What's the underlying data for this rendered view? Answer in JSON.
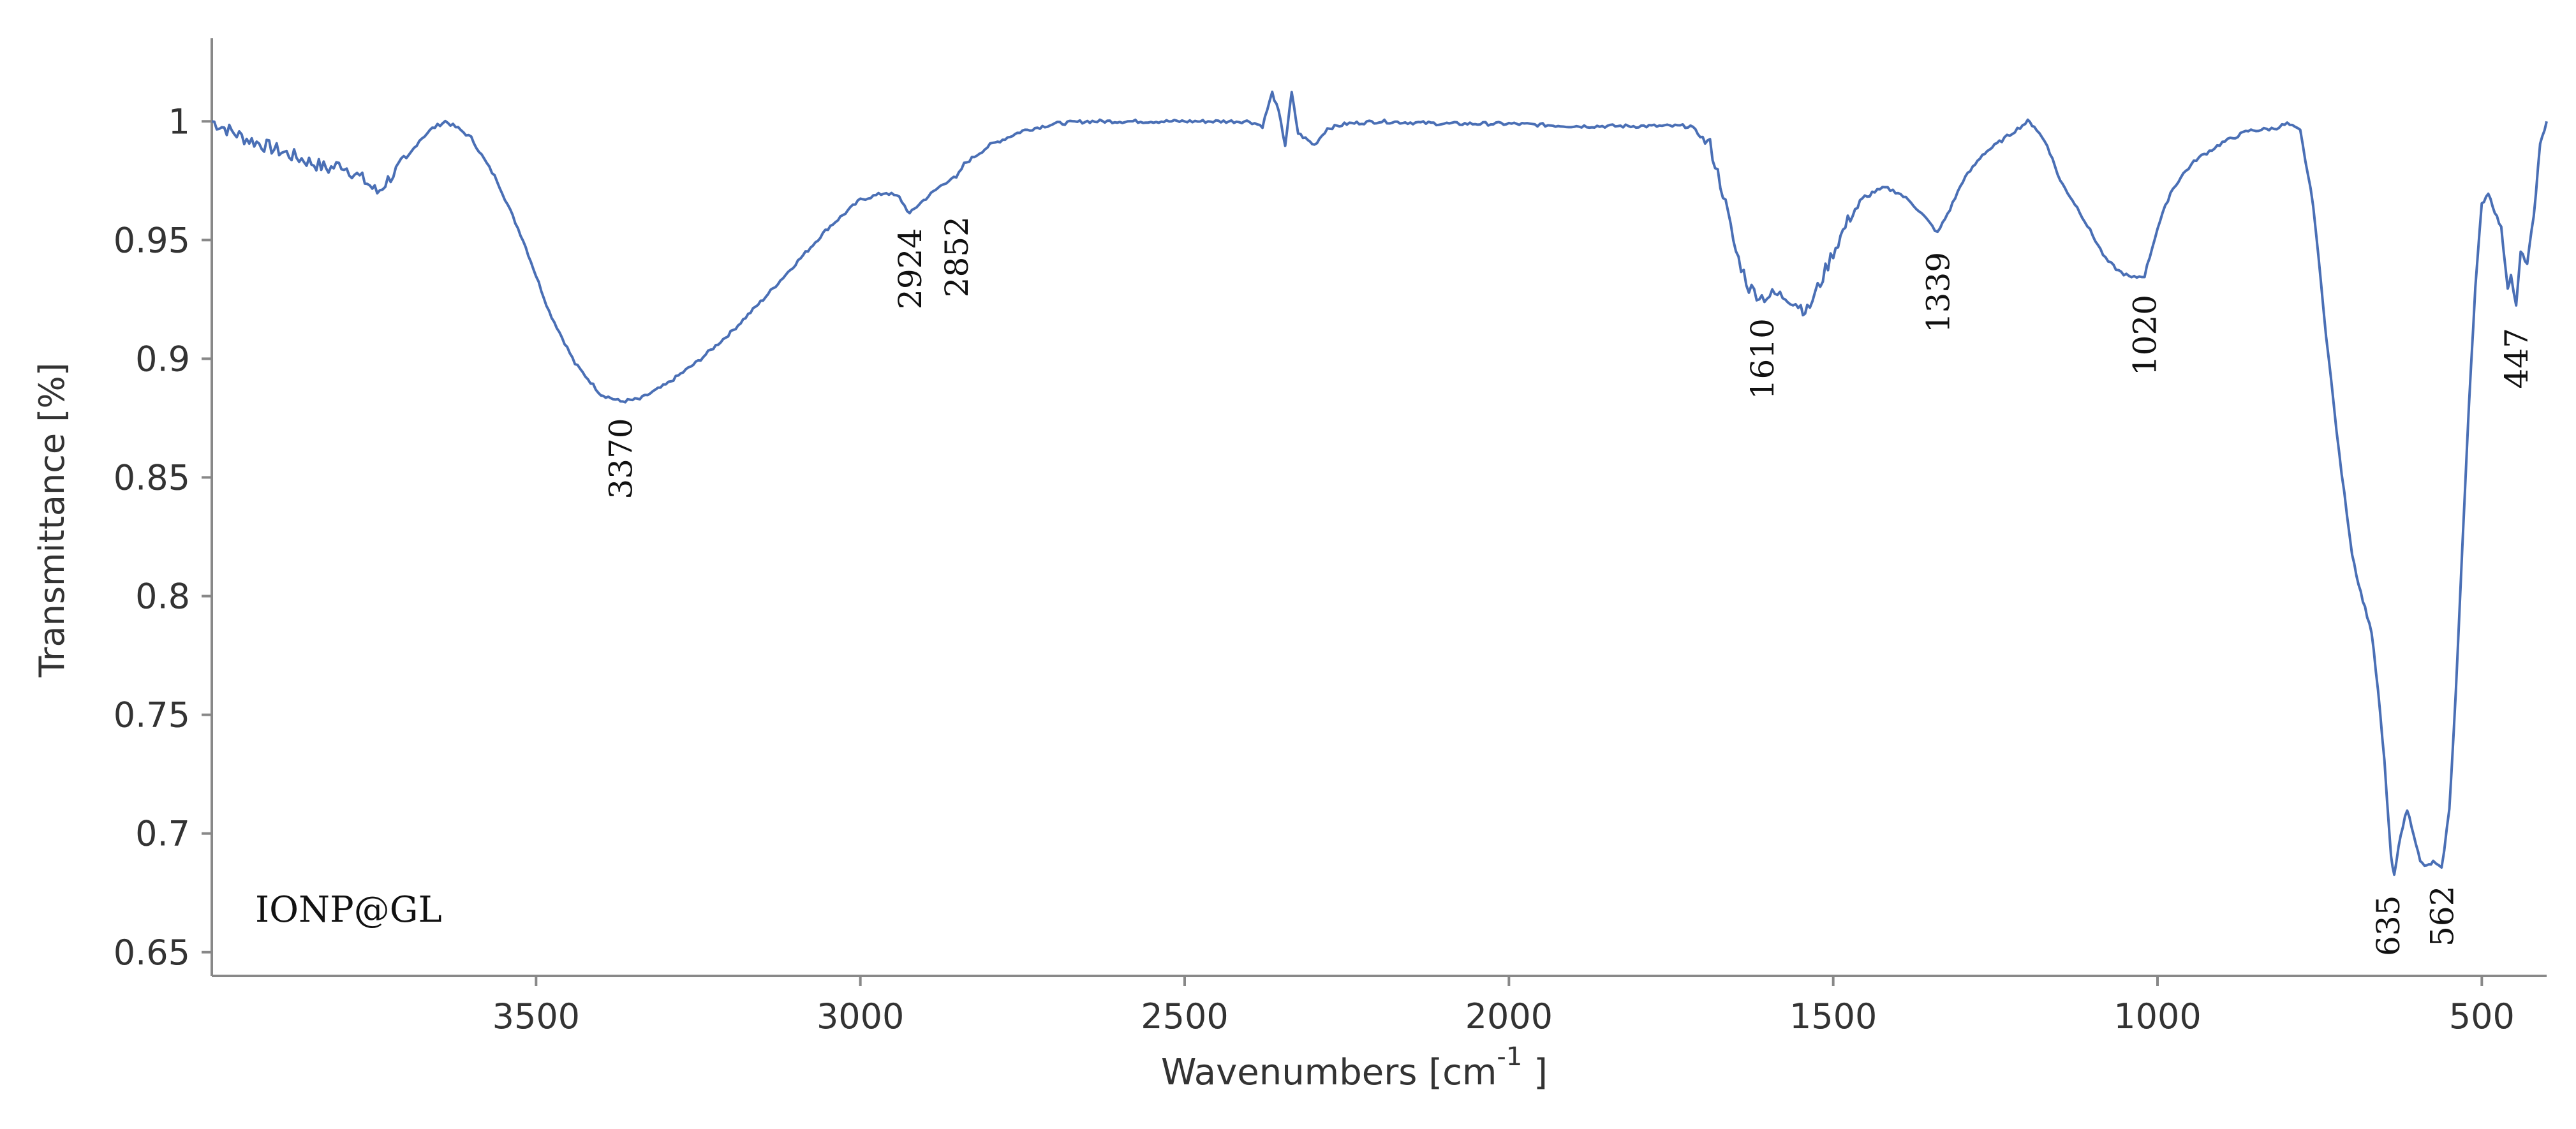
{
  "chart_data": {
    "type": "line",
    "xlabel": "Wavenumbers [cm",
    "xlabel_sup": "-1",
    "xlabel_tail": " ]",
    "ylabel": "Transmittance [%]",
    "xlim": [
      4000,
      400
    ],
    "x_reversed": true,
    "ylim": [
      0.64,
      1.035
    ],
    "x_ticks": [
      3500,
      3000,
      2500,
      2000,
      1500,
      1000,
      500
    ],
    "x_tick_labels": [
      "3500",
      "3000",
      "2500",
      "2000",
      "1500",
      "1000",
      "500"
    ],
    "y_ticks": [
      0.65,
      0.7,
      0.75,
      0.8,
      0.85,
      0.9,
      0.95,
      1
    ],
    "y_tick_labels": [
      "0.65",
      "0.7",
      "0.75",
      "0.8",
      "0.85",
      "0.9",
      "0.95",
      "1"
    ],
    "grid": false,
    "line_color": "#4a6fb5",
    "series": [
      {
        "name": "IONP@GL",
        "x": [
          4000,
          3950,
          3900,
          3850,
          3820,
          3800,
          3780,
          3760,
          3745,
          3720,
          3700,
          3680,
          3660,
          3640,
          3620,
          3600,
          3560,
          3520,
          3480,
          3440,
          3400,
          3370,
          3340,
          3300,
          3250,
          3200,
          3150,
          3100,
          3050,
          3000,
          2960,
          2940,
          2924,
          2910,
          2880,
          2860,
          2852,
          2840,
          2800,
          2750,
          2700,
          2650,
          2600,
          2500,
          2400,
          2380,
          2365,
          2355,
          2345,
          2335,
          2325,
          2310,
          2300,
          2280,
          2250,
          2200,
          2100,
          2000,
          1900,
          1800,
          1720,
          1690,
          1670,
          1650,
          1630,
          1610,
          1590,
          1570,
          1550,
          1540,
          1520,
          1500,
          1470,
          1440,
          1420,
          1400,
          1380,
          1360,
          1339,
          1320,
          1300,
          1270,
          1240,
          1220,
          1200,
          1190,
          1170,
          1150,
          1120,
          1100,
          1080,
          1060,
          1040,
          1020,
          1000,
          980,
          960,
          940,
          900,
          860,
          820,
          800,
          780,
          760,
          740,
          720,
          700,
          690,
          680,
          670,
          660,
          650,
          640,
          635,
          625,
          615,
          605,
          595,
          585,
          575,
          562,
          550,
          540,
          530,
          520,
          510,
          500,
          490,
          480,
          470,
          460,
          455,
          447,
          440,
          430,
          420,
          410,
          400
        ],
        "y": [
          1.0,
          0.993,
          0.988,
          0.983,
          0.98,
          0.982,
          0.978,
          0.974,
          0.97,
          0.978,
          0.984,
          0.992,
          0.997,
          1.0,
          0.997,
          0.993,
          0.975,
          0.95,
          0.92,
          0.898,
          0.885,
          0.882,
          0.883,
          0.889,
          0.899,
          0.911,
          0.925,
          0.94,
          0.955,
          0.967,
          0.97,
          0.968,
          0.961,
          0.965,
          0.972,
          0.976,
          0.976,
          0.982,
          0.99,
          0.996,
          0.999,
          1.0,
          1.0,
          1.0,
          1.0,
          0.998,
          1.012,
          1.004,
          0.99,
          1.012,
          0.995,
          0.992,
          0.99,
          0.997,
          0.999,
          1.0,
          0.999,
          0.999,
          0.998,
          0.998,
          0.998,
          0.99,
          0.97,
          0.945,
          0.93,
          0.926,
          0.927,
          0.926,
          0.922,
          0.92,
          0.932,
          0.945,
          0.962,
          0.97,
          0.972,
          0.97,
          0.966,
          0.96,
          0.953,
          0.963,
          0.975,
          0.986,
          0.992,
          0.996,
          1.0,
          0.998,
          0.99,
          0.975,
          0.962,
          0.952,
          0.942,
          0.937,
          0.934,
          0.935,
          0.955,
          0.97,
          0.978,
          0.984,
          0.991,
          0.996,
          0.997,
          0.999,
          0.996,
          0.965,
          0.91,
          0.86,
          0.818,
          0.805,
          0.795,
          0.785,
          0.76,
          0.73,
          0.69,
          0.682,
          0.7,
          0.71,
          0.7,
          0.688,
          0.686,
          0.688,
          0.685,
          0.71,
          0.76,
          0.82,
          0.88,
          0.93,
          0.965,
          0.97,
          0.962,
          0.955,
          0.93,
          0.935,
          0.922,
          0.945,
          0.94,
          0.96,
          0.99,
          1.0
        ]
      }
    ],
    "annotations": [
      {
        "label": "3370",
        "x": 3370,
        "y": 0.875
      },
      {
        "label": "2924",
        "x": 2924,
        "y": 0.955
      },
      {
        "label": "2852",
        "x": 2852,
        "y": 0.96
      },
      {
        "label": "1610",
        "x": 1610,
        "y": 0.917
      },
      {
        "label": "1339",
        "x": 1339,
        "y": 0.945
      },
      {
        "label": "1020",
        "x": 1020,
        "y": 0.927
      },
      {
        "label": "635",
        "x": 645,
        "y": 0.674
      },
      {
        "label": "562",
        "x": 562,
        "y": 0.678
      },
      {
        "label": "447",
        "x": 447,
        "y": 0.913
      }
    ],
    "sample_label": "IONP@GL"
  }
}
